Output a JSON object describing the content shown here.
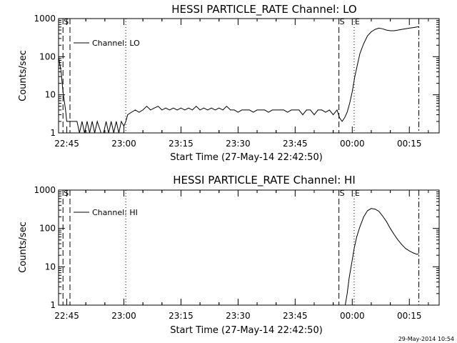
{
  "footer": {
    "timestamp": "29-May-2014 10:54"
  },
  "chart_data": [
    {
      "type": "line",
      "title": "HESSI PARTICLE_RATE Channel: LO",
      "xlabel": "Start Time (27-May-14 22:42:50)",
      "ylabel": "Counts/sec",
      "y_scale": "log",
      "ylim": [
        1,
        1000
      ],
      "xlim_minutes_after_start": [
        0,
        100
      ],
      "x_ticks": [
        "22:45",
        "23:00",
        "23:15",
        "23:30",
        "23:45",
        "00:00",
        "00:15"
      ],
      "y_ticks": [
        "1",
        "10",
        "100",
        "1000"
      ],
      "legend": {
        "label": "Channel: LO",
        "position": "top-left"
      },
      "grid": false,
      "markers": [
        {
          "label": "S",
          "time": "22:44:00",
          "style": "dashed"
        },
        {
          "label": "",
          "time": "22:45:50",
          "style": "dashed"
        },
        {
          "label": "",
          "time": "23:00:30",
          "style": "dotted"
        },
        {
          "label": "S",
          "time": "23:56:30",
          "style": "dashed"
        },
        {
          "label": "E",
          "time": "00:00:30",
          "style": "dotted"
        },
        {
          "label": "",
          "time": "00:17:30",
          "style": "dashdot"
        }
      ],
      "series": [
        {
          "name": "Channel: LO",
          "x": [
            "22:42:50",
            "22:43:30",
            "22:44:00",
            "22:44:40",
            "22:45:00",
            "22:46:00",
            "22:47:00",
            "22:47:40",
            "22:48:20",
            "22:49:00",
            "22:49:40",
            "22:50:20",
            "22:51:00",
            "22:51:40",
            "22:52:20",
            "22:53:00",
            "22:54:00",
            "22:54:40",
            "22:55:20",
            "22:56:00",
            "22:56:40",
            "22:57:20",
            "22:58:00",
            "22:58:40",
            "22:59:20",
            "23:00:00",
            "23:00:30",
            "23:01:00",
            "23:02:00",
            "23:03:00",
            "23:04:00",
            "23:05:00",
            "23:06:00",
            "23:07:00",
            "23:08:00",
            "23:09:00",
            "23:10:00",
            "23:11:00",
            "23:12:00",
            "23:13:00",
            "23:14:00",
            "23:15:00",
            "23:16:00",
            "23:17:00",
            "23:18:00",
            "23:19:00",
            "23:20:00",
            "23:21:00",
            "23:22:00",
            "23:23:00",
            "23:24:00",
            "23:25:00",
            "23:26:00",
            "23:27:00",
            "23:28:00",
            "23:29:00",
            "23:30:00",
            "23:31:00",
            "23:32:00",
            "23:33:00",
            "23:34:00",
            "23:35:00",
            "23:36:00",
            "23:37:00",
            "23:38:00",
            "23:39:00",
            "23:40:00",
            "23:41:00",
            "23:42:00",
            "23:43:00",
            "23:44:00",
            "23:45:00",
            "23:46:00",
            "23:47:00",
            "23:48:00",
            "23:49:00",
            "23:50:00",
            "23:51:00",
            "23:52:00",
            "23:53:00",
            "23:54:00",
            "23:55:00",
            "23:56:00",
            "23:56:40",
            "23:57:20",
            "23:58:00",
            "23:58:40",
            "23:59:20",
            "00:00:00",
            "00:00:40",
            "00:01:20",
            "00:02:00",
            "00:03:00",
            "00:04:00",
            "00:05:00",
            "00:06:00",
            "00:07:00",
            "00:08:00",
            "00:09:00",
            "00:10:00",
            "00:11:00",
            "00:12:00",
            "00:13:00",
            "00:14:00",
            "00:15:00",
            "00:16:00",
            "00:17:00",
            "00:17:30"
          ],
          "y": [
            100,
            40,
            12,
            4,
            2,
            2,
            2,
            2,
            1,
            2,
            1,
            2,
            1,
            2,
            1,
            2,
            1,
            1,
            2,
            1,
            2,
            1,
            2,
            1,
            2,
            1.5,
            2,
            3,
            3.5,
            4,
            3.5,
            4,
            5,
            4,
            4.5,
            5,
            4,
            4.5,
            4,
            4.5,
            4,
            4.5,
            4,
            4.5,
            4,
            5,
            4,
            4.5,
            4,
            4.5,
            4,
            4.5,
            4,
            5,
            4,
            4,
            3.5,
            4,
            4,
            4,
            3.5,
            4,
            4,
            4,
            3.5,
            4,
            4,
            4,
            4,
            3.5,
            4,
            4,
            4,
            3,
            4,
            4,
            3,
            4,
            4,
            3.5,
            4,
            3,
            4,
            2.5,
            2,
            2.5,
            3.5,
            6,
            12,
            30,
            60,
            120,
            220,
            350,
            450,
            520,
            560,
            540,
            500,
            480,
            480,
            500,
            520,
            540,
            560,
            580,
            600,
            620
          ]
        }
      ]
    },
    {
      "type": "line",
      "title": "HESSI PARTICLE_RATE Channel: HI",
      "xlabel": "Start Time (27-May-14 22:42:50)",
      "ylabel": "Counts/sec",
      "y_scale": "log",
      "ylim": [
        1,
        1000
      ],
      "xlim_minutes_after_start": [
        0,
        100
      ],
      "x_ticks": [
        "22:45",
        "23:00",
        "23:15",
        "23:30",
        "23:45",
        "00:00",
        "00:15"
      ],
      "y_ticks": [
        "1",
        "10",
        "100",
        "1000"
      ],
      "legend": {
        "label": "Channel: HI",
        "position": "top-left"
      },
      "grid": false,
      "markers": [
        {
          "label": "S",
          "time": "22:44:00",
          "style": "dashed"
        },
        {
          "label": "",
          "time": "22:45:50",
          "style": "dashed"
        },
        {
          "label": "",
          "time": "23:00:30",
          "style": "dotted"
        },
        {
          "label": "S",
          "time": "23:56:30",
          "style": "dashed"
        },
        {
          "label": "E",
          "time": "00:00:30",
          "style": "dotted"
        },
        {
          "label": "",
          "time": "00:17:30",
          "style": "dashdot"
        }
      ],
      "series": [
        {
          "name": "Channel: HI",
          "x": [
            "23:58:10",
            "23:58:40",
            "23:59:10",
            "23:59:50",
            "00:00:30",
            "00:01:10",
            "00:02:00",
            "00:03:00",
            "00:04:00",
            "00:05:00",
            "00:06:00",
            "00:07:00",
            "00:08:00",
            "00:09:00",
            "00:10:00",
            "00:11:00",
            "00:12:00",
            "00:13:00",
            "00:14:00",
            "00:15:00",
            "00:16:00",
            "00:17:00",
            "00:17:30"
          ],
          "y": [
            1,
            2,
            5,
            12,
            30,
            60,
            110,
            200,
            290,
            330,
            320,
            280,
            210,
            150,
            100,
            70,
            50,
            38,
            30,
            26,
            23,
            21,
            22
          ]
        }
      ]
    }
  ]
}
